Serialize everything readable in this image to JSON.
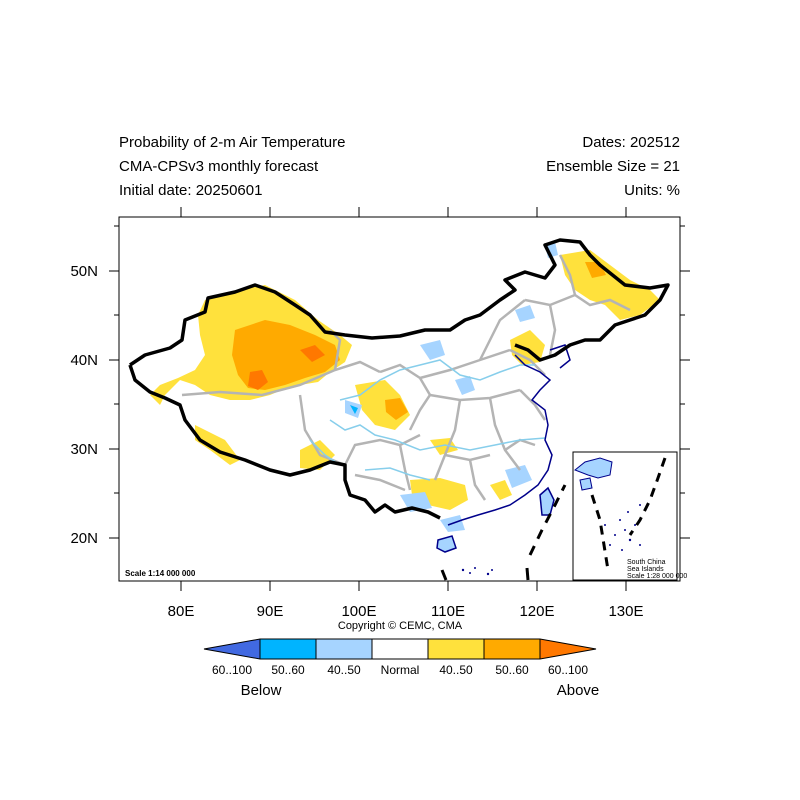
{
  "header": {
    "title_line1": "Probability of 2-m Air Temperature",
    "title_line2": "CMA-CPSv3 monthly forecast",
    "title_line3": "Initial date: 20250601",
    "dates": "Dates: 202512",
    "ensemble": "Ensemble Size = 21",
    "units": "Units: %"
  },
  "map": {
    "lon_ticks": [
      "80E",
      "90E",
      "100E",
      "110E",
      "120E",
      "130E"
    ],
    "lat_ticks": [
      "50N",
      "40N",
      "30N",
      "20N"
    ],
    "scale_main": "Scale 1:14 000 000",
    "inset": {
      "label_line1": "South China",
      "label_line2": "Sea Islands",
      "scale": "Scale 1:28 000 000"
    },
    "colors": {
      "border_national": "#000000",
      "border_province": "#b4b4b4",
      "rivers": "#87ceeb",
      "coast": "#00008b",
      "above_low": "#ffe13c",
      "above_mid": "#ffaa00",
      "above_high": "#ff7800",
      "below_low": "#a6d4ff",
      "below_mid": "#00b4ff",
      "below_high": "#4169e1"
    }
  },
  "copyright": "Copyright © CEMC, CMA",
  "colorbar": {
    "labels": [
      "60..100",
      "50..60",
      "40..50",
      "Normal",
      "40..50",
      "50..60",
      "60..100"
    ],
    "colors": [
      "#4169e1",
      "#00b4ff",
      "#a6d4ff",
      "#ffffff",
      "#ffe13c",
      "#ffaa00",
      "#ff7800"
    ],
    "below_label": "Below",
    "above_label": "Above"
  }
}
